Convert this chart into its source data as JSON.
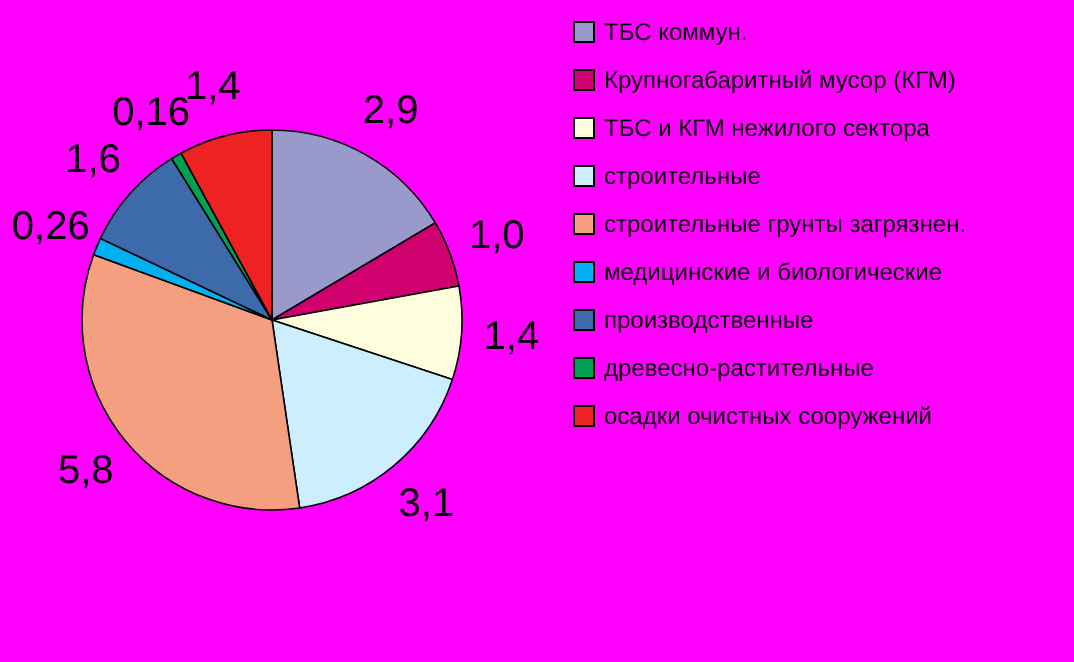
{
  "chart_data": {
    "type": "pie",
    "categories": [
      "ТБС коммун.",
      "Крупногабаритный мусор (КГМ)",
      "ТБС и КГМ нежилого сектора",
      "строительные",
      "строительные грунты загрязнен.",
      "медицинские и биологические",
      "производственные",
      "древесно-растительные",
      "осадки очистных сооружений"
    ],
    "values": [
      2.9,
      1.0,
      1.4,
      3.1,
      5.8,
      0.26,
      1.6,
      0.16,
      1.4
    ],
    "value_labels": [
      "2,9",
      "1,0",
      "1,4",
      "3,1",
      "5,8",
      "0,26",
      "1,6",
      "0,16",
      "1,4"
    ],
    "colors": [
      "#9999cc",
      "#d0006f",
      "#ffffdd",
      "#cceeff",
      "#f4a080",
      "#00b0f0",
      "#3d6aaa",
      "#00a050",
      "#ee2222"
    ],
    "legend": "right"
  }
}
